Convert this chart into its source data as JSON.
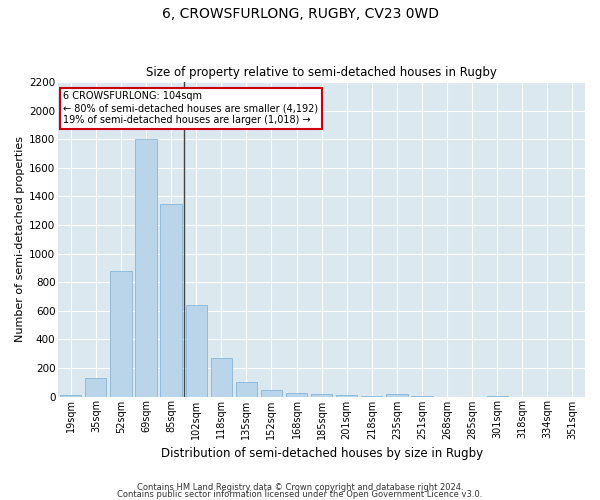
{
  "title": "6, CROWSFURLONG, RUGBY, CV23 0WD",
  "subtitle": "Size of property relative to semi-detached houses in Rugby",
  "xlabel": "Distribution of semi-detached houses by size in Rugby",
  "ylabel": "Number of semi-detached properties",
  "footer1": "Contains HM Land Registry data © Crown copyright and database right 2024.",
  "footer2": "Contains public sector information licensed under the Open Government Licence v3.0.",
  "annotation_title": "6 CROWSFURLONG: 104sqm",
  "annotation_line1": "← 80% of semi-detached houses are smaller (4,192)",
  "annotation_line2": "19% of semi-detached houses are larger (1,018) →",
  "categories": [
    "19sqm",
    "35sqm",
    "52sqm",
    "69sqm",
    "85sqm",
    "102sqm",
    "118sqm",
    "135sqm",
    "152sqm",
    "168sqm",
    "185sqm",
    "201sqm",
    "218sqm",
    "235sqm",
    "251sqm",
    "268sqm",
    "285sqm",
    "301sqm",
    "318sqm",
    "334sqm",
    "351sqm"
  ],
  "values": [
    10,
    130,
    880,
    1800,
    1350,
    640,
    270,
    100,
    45,
    28,
    18,
    8,
    3,
    15,
    2,
    0,
    0,
    2,
    0,
    0,
    0
  ],
  "bar_color": "#bad4ea",
  "bar_edge_color": "#7aafd4",
  "annotation_box_color": "#ffffff",
  "annotation_box_edge": "#cc0000",
  "marker_line_color": "#444444",
  "background_color": "#ffffff",
  "plot_bg_color": "#dce8f0",
  "grid_color": "#ffffff",
  "ylim": [
    0,
    2200
  ],
  "yticks": [
    0,
    200,
    400,
    600,
    800,
    1000,
    1200,
    1400,
    1600,
    1800,
    2000,
    2200
  ],
  "marker_bar_index": 5,
  "title_fontsize": 10,
  "subtitle_fontsize": 8.5,
  "ylabel_fontsize": 8,
  "xlabel_fontsize": 8.5,
  "tick_fontsize": 7,
  "footer_fontsize": 6,
  "annot_fontsize": 7
}
